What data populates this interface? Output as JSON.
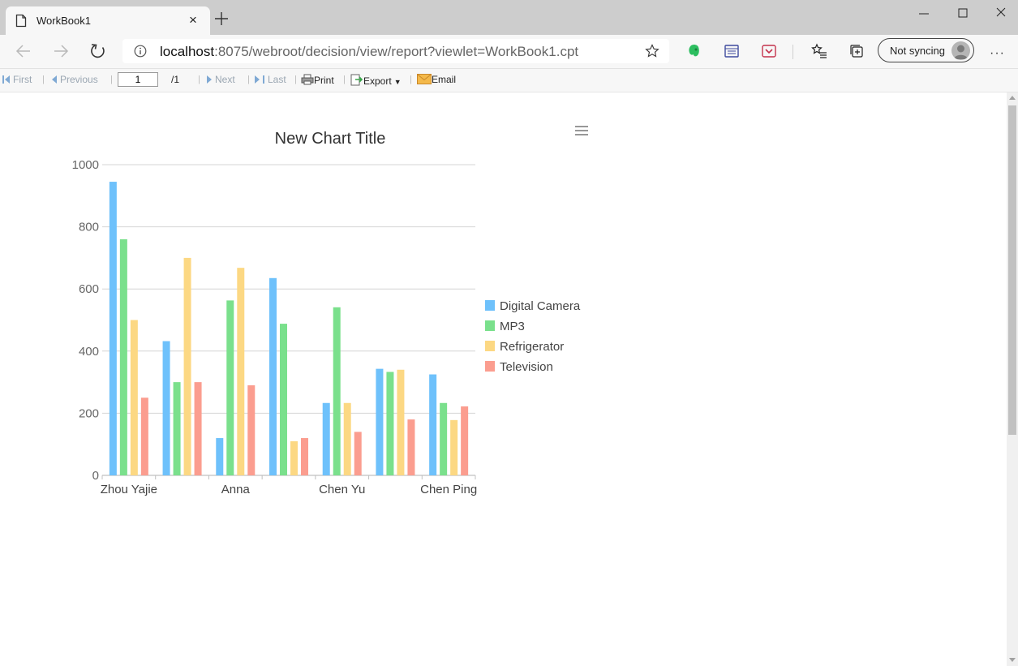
{
  "browser": {
    "tab_title": "WorkBook1",
    "tab_close": "×",
    "url_host": "localhost",
    "url_rest": ":8075/webroot/decision/view/report?viewlet=WorkBook1.cpt",
    "sync_label": "Not syncing",
    "more_label": "···"
  },
  "report_toolbar": {
    "first": "First",
    "previous": "Previous",
    "page_value": "1",
    "page_total": "/1",
    "next": "Next",
    "last": "Last",
    "print": "Print",
    "export": "Export",
    "email": "Email"
  },
  "colors": {
    "digital_camera": "#6ec1fb",
    "mp3": "#7ae08c",
    "refrigerator": "#fcd883",
    "television": "#fb9d8f"
  },
  "chart_data": {
    "type": "bar",
    "title": "New Chart Title",
    "xlabel": "",
    "ylabel": "",
    "ylim": [
      0,
      1000
    ],
    "yticks": [
      0,
      200,
      400,
      600,
      800,
      1000
    ],
    "categories": [
      "Zhou Yajie",
      "",
      "Anna",
      "",
      "Chen Yu",
      "",
      "Chen Ping"
    ],
    "grid": true,
    "legend_position": "right",
    "series": [
      {
        "name": "Digital Camera",
        "color": "#6ec1fb",
        "values": [
          945,
          432,
          120,
          635,
          233,
          343,
          325
        ]
      },
      {
        "name": "MP3",
        "color": "#7ae08c",
        "values": [
          760,
          300,
          563,
          488,
          541,
          333,
          233
        ]
      },
      {
        "name": "Refrigerator",
        "color": "#fcd883",
        "values": [
          500,
          700,
          668,
          110,
          233,
          340,
          178
        ]
      },
      {
        "name": "Television",
        "color": "#fb9d8f",
        "values": [
          250,
          300,
          290,
          120,
          140,
          180,
          222
        ]
      }
    ]
  }
}
